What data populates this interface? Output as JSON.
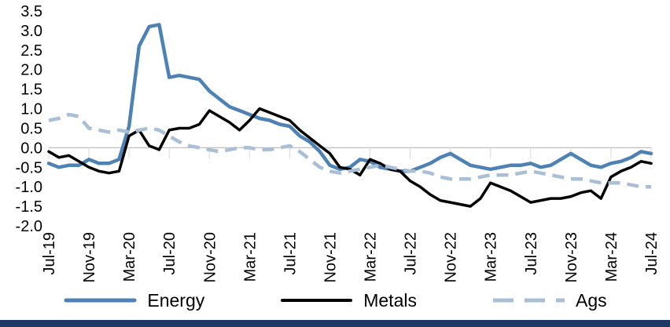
{
  "chart_data": {
    "type": "line",
    "title": "",
    "xlabel": "",
    "ylabel": "",
    "ylim": [
      -2.0,
      3.5
    ],
    "grid": "zero-line-only",
    "legend_position": "bottom",
    "y_ticks": [
      "3.5",
      "3.0",
      "2.5",
      "2.0",
      "1.5",
      "1.0",
      "0.5",
      "0.0",
      "-0.5",
      "-1.0",
      "-1.5",
      "-2.0"
    ],
    "x_tick_labels": [
      "Jul-19",
      "Nov-19",
      "Mar-20",
      "Jul-20",
      "Nov-20",
      "Mar-21",
      "Jul-21",
      "Nov-21",
      "Mar-22",
      "Jul-22",
      "Nov-22",
      "Mar-23",
      "Jul-23",
      "Nov-23",
      "Mar-24",
      "Jul-24"
    ],
    "x_tick_every": 4,
    "x_unit": "month",
    "series": [
      {
        "name": "Energy",
        "color": "#4e82b4",
        "dash": "solid",
        "values": [
          -0.4,
          -0.5,
          -0.45,
          -0.45,
          -0.3,
          -0.4,
          -0.4,
          -0.3,
          0.55,
          2.6,
          3.1,
          3.15,
          1.8,
          1.85,
          1.8,
          1.75,
          1.45,
          1.25,
          1.05,
          0.95,
          0.85,
          0.75,
          0.7,
          0.6,
          0.55,
          0.3,
          0.15,
          -0.1,
          -0.45,
          -0.55,
          -0.5,
          -0.3,
          -0.35,
          -0.5,
          -0.55,
          -0.6,
          -0.6,
          -0.5,
          -0.4,
          -0.25,
          -0.15,
          -0.3,
          -0.45,
          -0.5,
          -0.55,
          -0.5,
          -0.45,
          -0.45,
          -0.4,
          -0.5,
          -0.45,
          -0.3,
          -0.15,
          -0.3,
          -0.45,
          -0.5,
          -0.4,
          -0.35,
          -0.25,
          -0.1,
          -0.15
        ]
      },
      {
        "name": "Metals",
        "color": "#000000",
        "dash": "solid",
        "values": [
          -0.1,
          -0.25,
          -0.2,
          -0.35,
          -0.5,
          -0.6,
          -0.65,
          -0.6,
          0.3,
          0.45,
          0.05,
          -0.05,
          0.45,
          0.5,
          0.5,
          0.6,
          0.95,
          0.8,
          0.65,
          0.45,
          0.7,
          1.0,
          0.9,
          0.8,
          0.7,
          0.45,
          0.25,
          0.05,
          -0.15,
          -0.5,
          -0.55,
          -0.7,
          -0.3,
          -0.4,
          -0.55,
          -0.6,
          -0.85,
          -1.0,
          -1.2,
          -1.35,
          -1.4,
          -1.45,
          -1.5,
          -1.3,
          -0.9,
          -1.0,
          -1.1,
          -1.25,
          -1.4,
          -1.35,
          -1.3,
          -1.3,
          -1.25,
          -1.15,
          -1.1,
          -1.3,
          -0.75,
          -0.6,
          -0.5,
          -0.35,
          -0.4
        ]
      },
      {
        "name": "Ags",
        "color": "#a9bfd6",
        "dash": "dashed",
        "values": [
          0.7,
          0.75,
          0.85,
          0.8,
          0.5,
          0.45,
          0.4,
          0.45,
          0.4,
          0.45,
          0.5,
          0.45,
          0.3,
          0.15,
          0.05,
          0.0,
          -0.05,
          -0.1,
          -0.05,
          0.0,
          0.0,
          -0.05,
          -0.05,
          0.0,
          0.05,
          -0.1,
          -0.3,
          -0.5,
          -0.6,
          -0.65,
          -0.6,
          -0.55,
          -0.5,
          -0.45,
          -0.5,
          -0.55,
          -0.6,
          -0.6,
          -0.65,
          -0.75,
          -0.8,
          -0.8,
          -0.8,
          -0.75,
          -0.7,
          -0.7,
          -0.7,
          -0.65,
          -0.6,
          -0.65,
          -0.7,
          -0.75,
          -0.8,
          -0.8,
          -0.85,
          -0.9,
          -0.9,
          -0.9,
          -0.95,
          -1.0,
          -1.0
        ]
      }
    ]
  },
  "colors": {
    "axis_line": "#bfbfbf",
    "tick_line": "#d9d9d9",
    "label_text": "#000000",
    "bottom_bar": "#1f3864"
  }
}
